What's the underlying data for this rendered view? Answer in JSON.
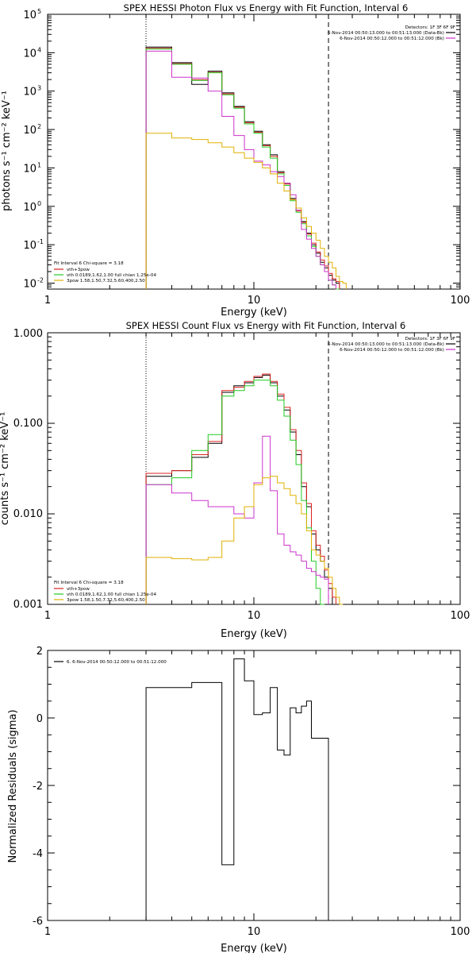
{
  "chart_data": [
    {
      "type": "line",
      "title": "SPEX HESSI Photon Flux vs Energy with Fit Function, Interval 6",
      "xlabel": "Energy (keV)",
      "ylabel": "photons s⁻¹ cm⁻² keV⁻¹",
      "xscale": "log",
      "yscale": "log",
      "xlim": [
        1,
        100
      ],
      "ylim": [
        0.007,
        100000
      ],
      "xticks": [
        "1",
        "10",
        "100"
      ],
      "yticks": [
        {
          "base": "10",
          "exp": "-2"
        },
        {
          "base": "10",
          "exp": "-1"
        },
        {
          "base": "10",
          "exp": "0"
        },
        {
          "base": "10",
          "exp": "1"
        },
        {
          "base": "10",
          "exp": "2"
        },
        {
          "base": "10",
          "exp": "3"
        },
        {
          "base": "10",
          "exp": "4"
        },
        {
          "base": "10",
          "exp": "5"
        }
      ],
      "vlines": [
        {
          "x": 3.0,
          "style": "dotted"
        },
        {
          "x": 23.0,
          "style": "dashed"
        }
      ],
      "legend_topright": {
        "header": "Detectors: 1F 3F 6F 9F",
        "entries": [
          {
            "text": "6-Nov-2014 00:50:13.000 to 00:51:13.000 (Data-Bk)",
            "color": "#000000"
          },
          {
            "text": "6-Nov-2014 00:50:12.000 to 00:51:12.000 (Bk)",
            "color": "#cc33cc"
          }
        ]
      },
      "legend_bottomleft": {
        "header": "Fit Interval 6   Chi-square = 3.18",
        "entries": [
          {
            "text": "vth+3pow",
            "color": "#dd2020"
          },
          {
            "text": "vth 0.0189,1.62,1.00  full chian 1.25e-04",
            "color": "#22cc22"
          },
          {
            "text": "3pow 1.58,1.50,7.32,5.60,400,2.50",
            "color": "#e0b000"
          }
        ]
      },
      "edges": [
        3.0,
        4.0,
        5.0,
        6.0,
        7.0,
        8.0,
        9.0,
        10.0,
        11.0,
        12.0,
        13.0,
        14.0,
        15.0,
        16.0,
        17.0,
        18.0,
        19.0,
        20.0,
        21.0,
        22.0,
        23.0,
        24.0,
        25.0,
        26.0,
        27.0,
        28.0
      ],
      "series": [
        {
          "name": "Data-Bk",
          "color": "#000000",
          "values": [
            14000,
            5500,
            1500,
            3300,
            900,
            400,
            160,
            90,
            40,
            22,
            8,
            4,
            1.6,
            0.8,
            0.4,
            0.2,
            0.1,
            0.06,
            0.035,
            0.025,
            0.016,
            0.012,
            0.01,
            null,
            null
          ]
        },
        {
          "name": "vth+3pow",
          "color": "#dd2020",
          "values": [
            13000,
            5200,
            2000,
            3100,
            850,
            380,
            150,
            85,
            38,
            20,
            7.5,
            3.8,
            1.5,
            0.75,
            0.38,
            0.19,
            0.11,
            0.065,
            0.04,
            0.028,
            0.018,
            0.013,
            0.011,
            null,
            null
          ]
        },
        {
          "name": "vth",
          "color": "#22cc22",
          "values": [
            12500,
            5000,
            1900,
            3000,
            800,
            360,
            140,
            80,
            35,
            18,
            7,
            3.5,
            1.4,
            0.7,
            0.35,
            0.17,
            0.09,
            0.05,
            0.03,
            0.02,
            0.012,
            0.009,
            0.007,
            null,
            null
          ]
        },
        {
          "name": "Bk",
          "color": "#cc33cc",
          "values": [
            11000,
            2300,
            2200,
            1000,
            220,
            70,
            30,
            15,
            12,
            8,
            6,
            4,
            2,
            0.8,
            0.25,
            0.14,
            0.08,
            0.05,
            0.03,
            0.02,
            0.012,
            0.009,
            null,
            null,
            null
          ]
        },
        {
          "name": "3pow",
          "color": "#e0b000",
          "values": [
            80,
            60,
            55,
            45,
            35,
            25,
            18,
            14,
            10,
            7,
            4,
            2.5,
            1.5,
            0.9,
            0.5,
            0.3,
            0.2,
            0.13,
            0.08,
            0.05,
            0.035,
            0.025,
            0.015,
            0.011,
            0.01
          ]
        }
      ]
    },
    {
      "type": "line",
      "title": "SPEX HESSI Count Flux vs Energy with Fit Function, Interval 6",
      "xlabel": "Energy (keV)",
      "ylabel": "counts s⁻¹ cm⁻² keV⁻¹",
      "xscale": "log",
      "yscale": "log",
      "xlim": [
        1,
        100
      ],
      "ylim": [
        0.001,
        1.0
      ],
      "xticks": [
        "1",
        "10",
        "100"
      ],
      "yticks": [
        "0.001",
        "0.010",
        "0.100",
        "1.000"
      ],
      "vlines": [
        {
          "x": 3.0,
          "style": "dotted"
        },
        {
          "x": 23.0,
          "style": "dashed"
        }
      ],
      "legend_topright": {
        "header": "Detectors: 1F 3F 6F 9F",
        "entries": [
          {
            "text": "6-Nov-2014 00:50:13.000 to 00:51:13.000 (Data-Bk)",
            "color": "#000000"
          },
          {
            "text": "6-Nov-2014 00:50:12.000 to 00:51:12.000 (Bk)",
            "color": "#cc33cc"
          }
        ]
      },
      "legend_bottomleft": {
        "header": "Fit Interval 6   Chi-square = 3.18",
        "entries": [
          {
            "text": "vth+3pow",
            "color": "#dd2020"
          },
          {
            "text": "vth 0.0189,1.62,1.00  full chian 1.25e-04",
            "color": "#22cc22"
          },
          {
            "text": "3pow 1.58,1.50,7.32,5.60,400,2.50",
            "color": "#e0b000"
          }
        ]
      },
      "edges": [
        3.0,
        4.0,
        5.0,
        6.0,
        7.0,
        8.0,
        9.0,
        10.0,
        11.0,
        12.0,
        13.0,
        14.0,
        15.0,
        16.0,
        17.0,
        18.0,
        19.0,
        20.0,
        21.0,
        22.0,
        23.0,
        24.0,
        25.0,
        26.0,
        27.0,
        28.0
      ],
      "series": [
        {
          "name": "Data-Bk",
          "color": "#000000",
          "values": [
            0.026,
            0.03,
            0.042,
            0.06,
            0.22,
            0.26,
            0.28,
            0.32,
            0.34,
            0.28,
            0.2,
            0.14,
            0.08,
            0.045,
            0.02,
            0.012,
            0.006,
            0.004,
            0.003,
            0.002,
            0.0015,
            0.001,
            null,
            null,
            null
          ]
        },
        {
          "name": "vth+3pow",
          "color": "#dd2020",
          "values": [
            0.028,
            0.03,
            0.045,
            0.063,
            0.23,
            0.25,
            0.29,
            0.33,
            0.35,
            0.29,
            0.21,
            0.15,
            0.085,
            0.05,
            0.022,
            0.013,
            0.0065,
            0.0045,
            0.0034,
            0.0024,
            0.0017,
            0.0012,
            null,
            null,
            null
          ]
        },
        {
          "name": "vth",
          "color": "#22cc22",
          "values": [
            0.021,
            0.025,
            0.05,
            0.075,
            0.2,
            0.23,
            0.26,
            0.3,
            0.3,
            0.26,
            0.18,
            0.12,
            0.065,
            0.035,
            0.014,
            0.007,
            0.003,
            0.0015,
            0.001,
            null,
            null,
            null,
            null,
            null,
            null
          ]
        },
        {
          "name": "Bk",
          "color": "#cc33cc",
          "values": [
            0.021,
            0.017,
            0.014,
            0.012,
            0.012,
            0.01,
            0.009,
            0.022,
            0.072,
            0.018,
            0.006,
            0.0045,
            0.0038,
            0.0035,
            0.003,
            0.0025,
            0.0023,
            0.0021,
            0.002,
            0.0019,
            null,
            null,
            null,
            null,
            null
          ]
        },
        {
          "name": "3pow",
          "color": "#e0b000",
          "values": [
            0.0033,
            0.0032,
            0.0031,
            0.0033,
            0.005,
            0.009,
            0.012,
            0.021,
            0.025,
            0.026,
            0.022,
            0.019,
            0.016,
            0.013,
            0.01,
            0.0065,
            0.004,
            0.0035,
            0.003,
            0.0025,
            0.002,
            0.0015,
            0.0012,
            0.001,
            null
          ]
        }
      ]
    },
    {
      "type": "line",
      "title": "",
      "xlabel": "Energy (keV)",
      "ylabel": "Normalized Residuals (sigma)",
      "xscale": "log",
      "yscale": "linear",
      "xlim": [
        1,
        100
      ],
      "ylim": [
        -6,
        2
      ],
      "xticks": [
        "1",
        "10",
        "100"
      ],
      "yticks": [
        "-6",
        "-4",
        "-2",
        "0",
        "2"
      ],
      "legend_topleft": {
        "entries": [
          {
            "text": "6. 6-Nov-2014 00:50:12.000 to 00:51:12.000",
            "color": "#000000"
          }
        ]
      },
      "edges": [
        3.0,
        4.0,
        5.0,
        6.0,
        7.0,
        8.0,
        9.0,
        10.0,
        11.0,
        12.0,
        13.0,
        14.0,
        15.0,
        16.0,
        17.0,
        18.0,
        19.0,
        20.0,
        21.0,
        22.0,
        23.0
      ],
      "series": [
        {
          "name": "residuals",
          "color": "#000000",
          "values": [
            0.9,
            0.9,
            1.05,
            1.05,
            -4.35,
            1.75,
            1.1,
            0.1,
            0.15,
            0.9,
            -0.95,
            -1.1,
            0.3,
            0.15,
            0.35,
            0.5,
            -0.6,
            -0.6,
            -0.6,
            -0.6
          ]
        }
      ]
    }
  ]
}
